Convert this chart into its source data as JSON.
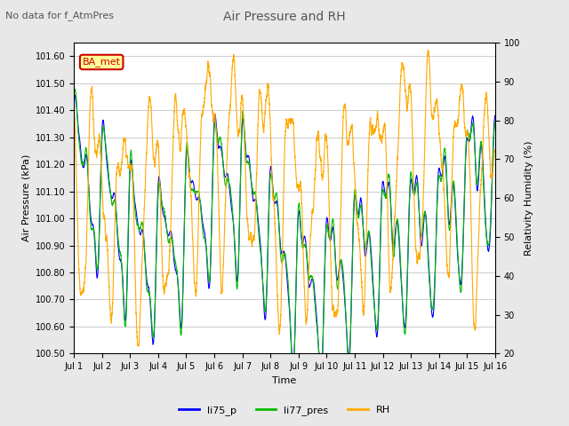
{
  "title": "Air Pressure and RH",
  "subtitle": "No data for f_AtmPres",
  "xlabel": "Time",
  "ylabel_left": "Air Pressure (kPa)",
  "ylabel_right": "Relativity Humidity (%)",
  "ylim_left": [
    100.5,
    101.65
  ],
  "ylim_right": [
    20,
    100
  ],
  "yticks_left": [
    100.5,
    100.6,
    100.7,
    100.8,
    100.9,
    101.0,
    101.1,
    101.2,
    101.3,
    101.4,
    101.5,
    101.6
  ],
  "yticks_right": [
    20,
    30,
    40,
    50,
    60,
    70,
    80,
    90,
    100
  ],
  "xtick_labels": [
    "Jul 1",
    "Jul 2",
    "Jul 3",
    "Jul 4",
    "Jul 5",
    "Jul 6",
    "Jul 7",
    "Jul 8",
    "Jul 9",
    "Jul 10",
    "Jul 11",
    "Jul 12",
    "Jul 13",
    "Jul 14",
    "Jul 15",
    "Jul 16"
  ],
  "color_li75": "#0000ff",
  "color_li77": "#00bb00",
  "color_rh": "#ffaa00",
  "legend_labels": [
    "li75_p",
    "li77_pres",
    "RH"
  ],
  "ba_met_label": "BA_met",
  "ba_met_color": "#cc0000",
  "ba_met_bg": "#ffff99",
  "background_color": "#e8e8e8",
  "plot_bg": "#ffffff",
  "grid_color": "#cccccc",
  "n_points": 7200,
  "days": 15
}
